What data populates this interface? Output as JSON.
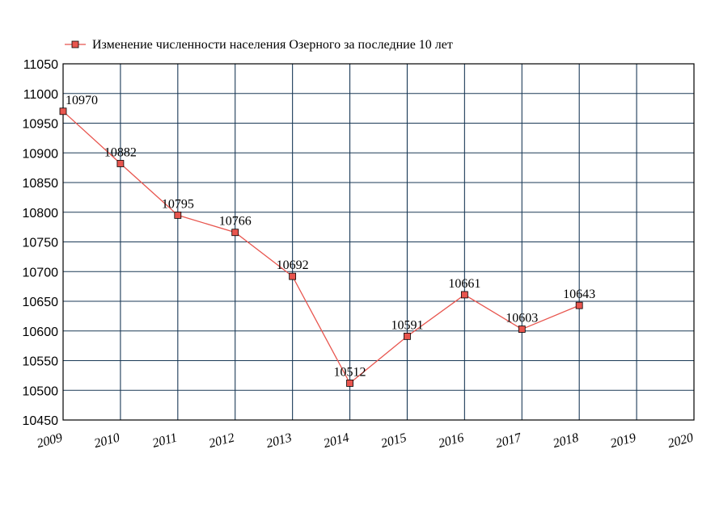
{
  "chart_data": {
    "type": "line",
    "title": "",
    "xlabel": "",
    "ylabel": "",
    "x": [
      2009,
      2010,
      2011,
      2012,
      2013,
      2014,
      2015,
      2016,
      2017,
      2018
    ],
    "x_ticks": [
      "2009",
      "2010",
      "2011",
      "2012",
      "2013",
      "2014",
      "2015",
      "2016",
      "2017",
      "2018",
      "2019",
      "2020"
    ],
    "xlim": [
      2009,
      2020
    ],
    "ylim": [
      10450,
      11050
    ],
    "y_ticks": [
      "10450",
      "10500",
      "10550",
      "10600",
      "10650",
      "10700",
      "10750",
      "10800",
      "10850",
      "10900",
      "10950",
      "11000",
      "11050"
    ],
    "grid": true,
    "legend_position": "top-left",
    "series": [
      {
        "name": "Изменение численности населения Озерного за последние 10 лет",
        "color": "#e8554e",
        "marker_color": "#e8554e",
        "values": [
          10970,
          10882,
          10795,
          10766,
          10692,
          10512,
          10591,
          10661,
          10603,
          10643
        ],
        "labels": [
          "10970",
          "10882",
          "10795",
          "10766",
          "10692",
          "10512",
          "10591",
          "10661",
          "10603",
          "10643"
        ]
      }
    ],
    "grid_color": "#1b3a57"
  }
}
